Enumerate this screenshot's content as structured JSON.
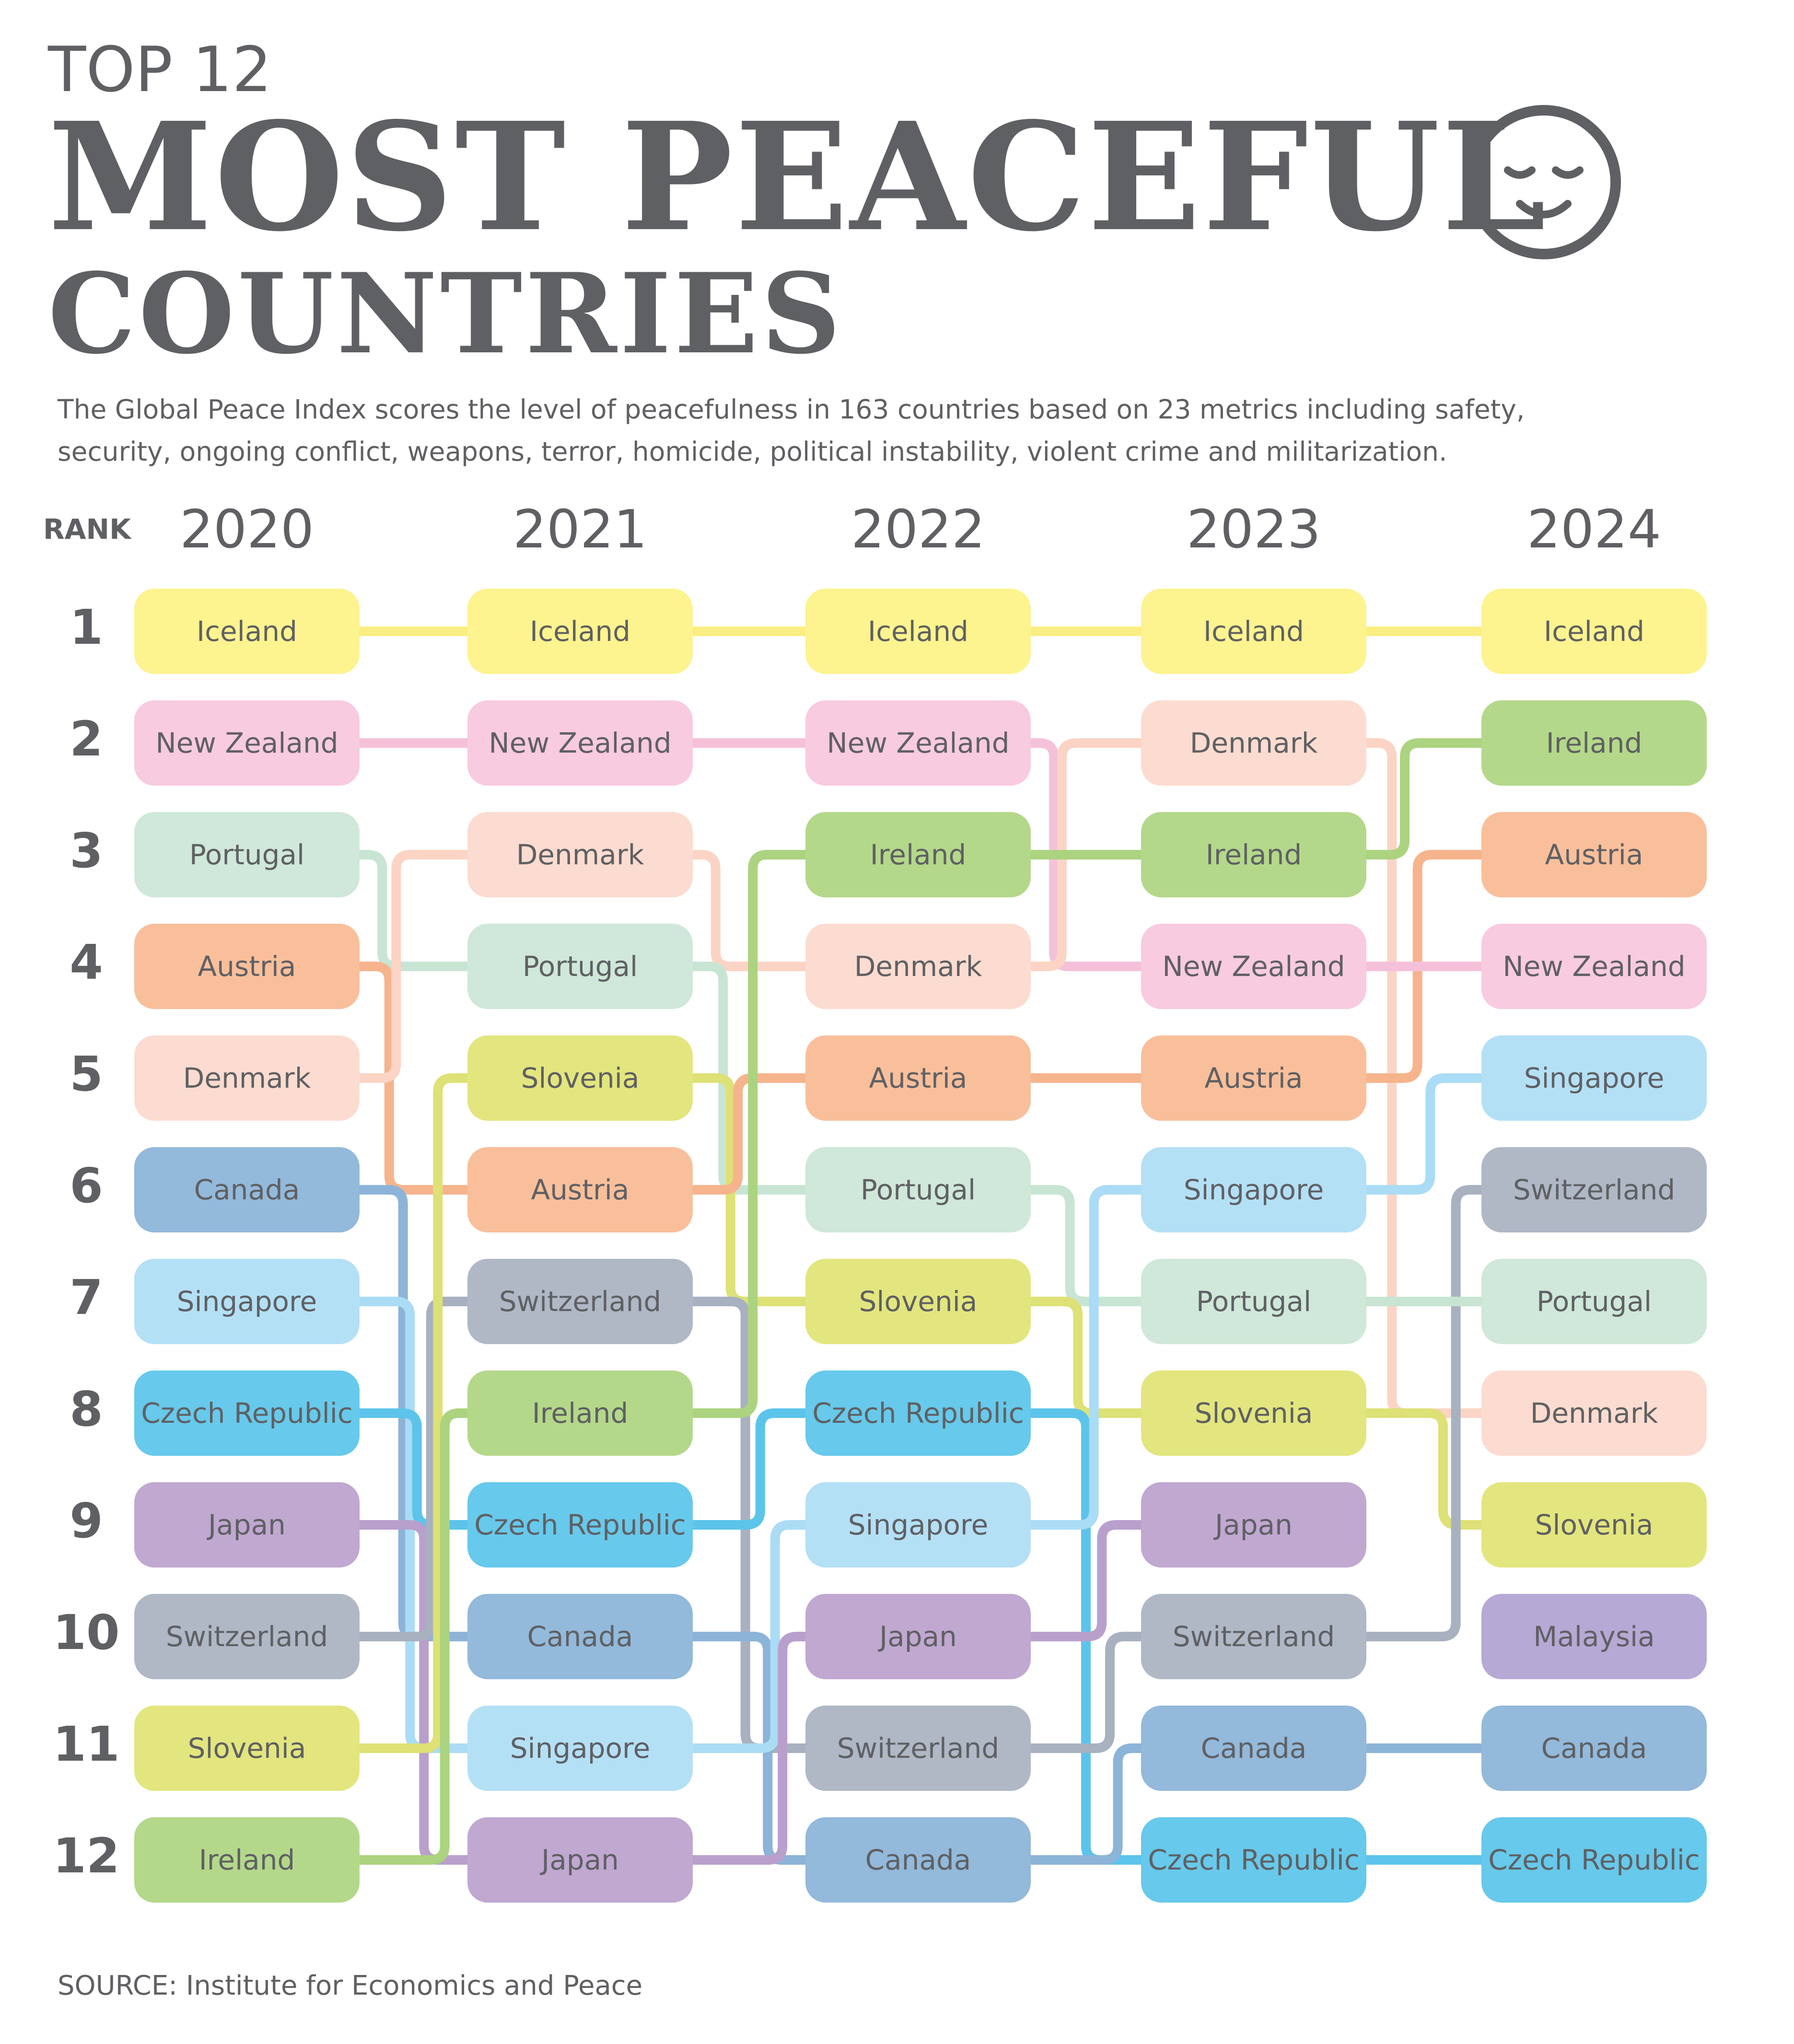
{
  "header": {
    "kicker": "TOP 12",
    "title_line1": "MOST PEACEFUL",
    "title_line2": "COUNTRIES",
    "subtitle": "The Global Peace Index scores the level of peacefulness in 163 countries based on 23 metrics including safety, security, ongoing conflict, weapons, terror, homicide, political instability, violent crime and militarization.",
    "rank_label": "RANK",
    "face_icon": "sleeping-smiley-face-icon"
  },
  "footer": {
    "source": "SOURCE: Institute for Economics and Peace"
  },
  "chart_data": {
    "type": "bump",
    "ranks": [
      1,
      2,
      3,
      4,
      5,
      6,
      7,
      8,
      9,
      10,
      11,
      12
    ],
    "years": [
      "2020",
      "2021",
      "2022",
      "2023",
      "2024"
    ],
    "rankings": {
      "2020": [
        "Iceland",
        "New Zealand",
        "Portugal",
        "Austria",
        "Denmark",
        "Canada",
        "Singapore",
        "Czech Republic",
        "Japan",
        "Switzerland",
        "Slovenia",
        "Ireland"
      ],
      "2021": [
        "Iceland",
        "New Zealand",
        "Denmark",
        "Portugal",
        "Slovenia",
        "Austria",
        "Switzerland",
        "Ireland",
        "Czech Republic",
        "Canada",
        "Singapore",
        "Japan"
      ],
      "2022": [
        "Iceland",
        "New Zealand",
        "Ireland",
        "Denmark",
        "Austria",
        "Portugal",
        "Slovenia",
        "Czech Republic",
        "Singapore",
        "Japan",
        "Switzerland",
        "Canada"
      ],
      "2023": [
        "Iceland",
        "Denmark",
        "Ireland",
        "New Zealand",
        "Austria",
        "Singapore",
        "Portugal",
        "Slovenia",
        "Japan",
        "Switzerland",
        "Canada",
        "Czech Republic"
      ],
      "2024": [
        "Iceland",
        "Ireland",
        "Austria",
        "New Zealand",
        "Singapore",
        "Switzerland",
        "Portugal",
        "Denmark",
        "Slovenia",
        "Malaysia",
        "Canada",
        "Czech Republic"
      ]
    },
    "country_colors": {
      "Iceland": {
        "fill": "#fdf38f",
        "line": "#fbee82"
      },
      "New Zealand": {
        "fill": "#f8cbe0",
        "line": "#f5c1da"
      },
      "Portugal": {
        "fill": "#cfe8d9",
        "line": "#c8e5d3"
      },
      "Austria": {
        "fill": "#f9bf9b",
        "line": "#f6b48c"
      },
      "Denmark": {
        "fill": "#fcdcd0",
        "line": "#fbd4c5"
      },
      "Canada": {
        "fill": "#93b9db",
        "line": "#8cb4d8"
      },
      "Singapore": {
        "fill": "#b4e0f6",
        "line": "#aadcf5"
      },
      "Czech Republic": {
        "fill": "#67c9eb",
        "line": "#5cc4ea"
      },
      "Japan": {
        "fill": "#c0a8d1",
        "line": "#b9a0cc"
      },
      "Switzerland": {
        "fill": "#b0b8c6",
        "line": "#a8b1c0"
      },
      "Slovenia": {
        "fill": "#e3e67e",
        "line": "#dde176"
      },
      "Ireland": {
        "fill": "#b4d88a",
        "line": "#acd37f"
      },
      "Malaysia": {
        "fill": "#b7a9d5",
        "line": "#b0a1d1"
      }
    }
  }
}
